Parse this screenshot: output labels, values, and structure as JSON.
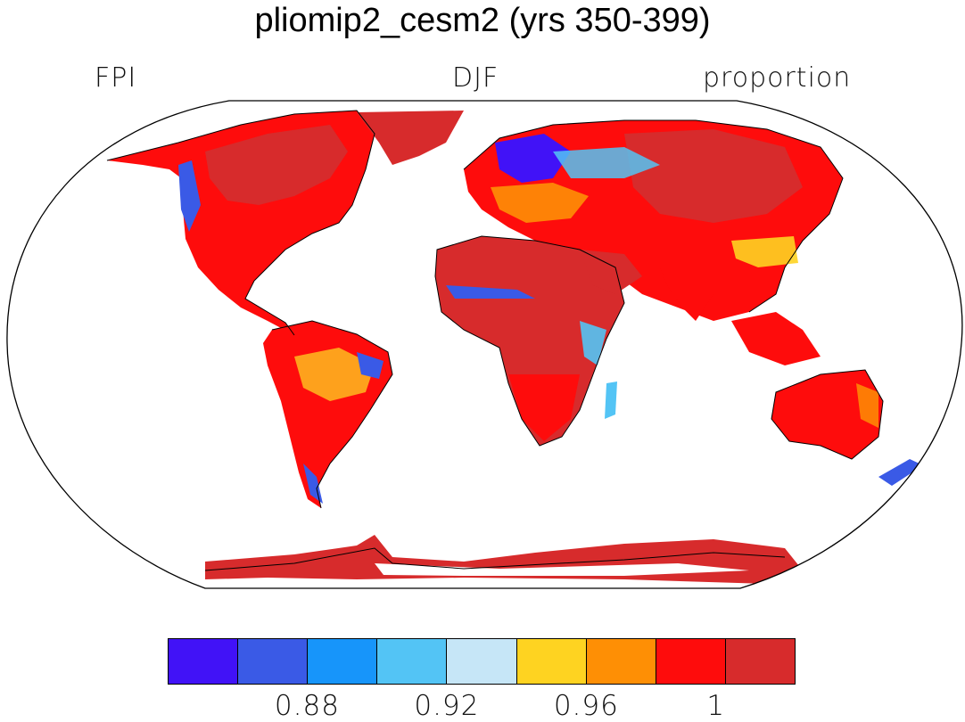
{
  "title": "pliomip2_cesm2 (yrs 350-399)",
  "labels": {
    "left": "FPI",
    "center": "DJF",
    "right": "proportion"
  },
  "colorbar": {
    "colors": [
      "#4112f7",
      "#3a5ae6",
      "#1795fa",
      "#53c4f5",
      "#c6e6f7",
      "#fed321",
      "#fe8f05",
      "#fe0c0c",
      "#d72b2c"
    ],
    "labels": [
      "0.88",
      "0.92",
      "0.96",
      "1"
    ]
  },
  "map": {
    "projection": "Robinson",
    "variable_palette_index_for_land": "mostly 1 (dark red / red)",
    "ocean_color": "#ffffff"
  }
}
